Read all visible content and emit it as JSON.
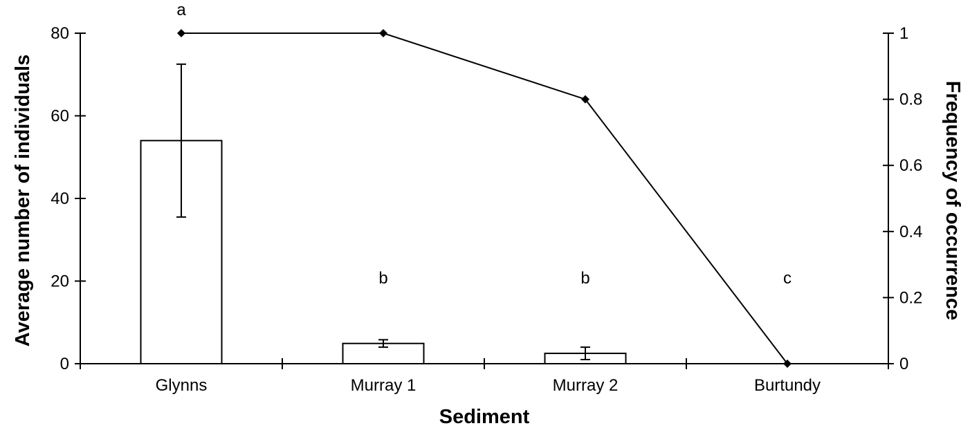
{
  "chart_data": {
    "type": "bar+line",
    "title": "",
    "xlabel": "Sediment",
    "ylabel": "Average number of individuals",
    "y2label": "Frequency of occurrence",
    "categories": [
      "Glynns",
      "Murray 1",
      "Murray 2",
      "Burtundy"
    ],
    "series": [
      {
        "name": "Average number of individuals",
        "type": "bar",
        "axis": "left",
        "values": [
          54,
          4.9,
          2.5,
          0
        ],
        "error": [
          18.5,
          0.9,
          1.5,
          0
        ]
      },
      {
        "name": "Frequency of occurrence",
        "type": "line",
        "axis": "right",
        "marker": "diamond",
        "values": [
          1,
          1,
          0.8,
          0
        ]
      }
    ],
    "significance_letters": [
      "a",
      "b",
      "b",
      "c"
    ],
    "ylim": [
      0,
      80
    ],
    "yticks": [
      "0",
      "20",
      "40",
      "60",
      "80"
    ],
    "y2lim": [
      0,
      1
    ],
    "y2ticks": [
      "0",
      "0.2",
      "0.4",
      "0.6",
      "0.8",
      "1"
    ],
    "grid": false,
    "legend": "none"
  }
}
